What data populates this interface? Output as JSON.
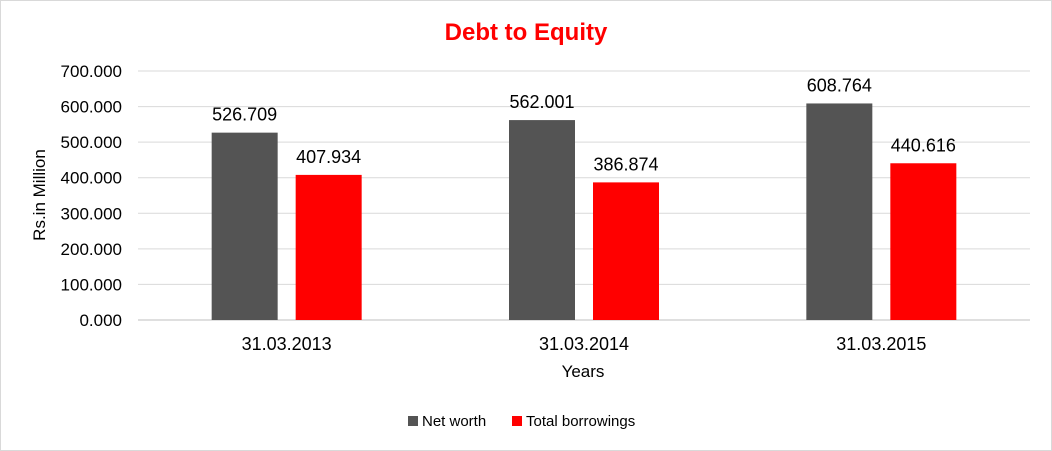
{
  "chart_data": {
    "type": "bar",
    "title": "Debt to Equity",
    "xlabel": "Years",
    "ylabel": "Rs.in Million",
    "categories": [
      "31.03.2013",
      "31.03.2014",
      "31.03.2015"
    ],
    "series": [
      {
        "name": "Net worth",
        "values": [
          526.709,
          562.001,
          608.764
        ],
        "color": "#545454",
        "labels": [
          "526.709",
          "562.001",
          "608.764"
        ]
      },
      {
        "name": "Total borrowings",
        "values": [
          407.934,
          386.874,
          440.616
        ],
        "color": "#ff0000",
        "labels": [
          "407.934",
          "386.874",
          "440.616"
        ]
      }
    ],
    "ylim": [
      0,
      700
    ],
    "yticks": [
      0,
      100,
      200,
      300,
      400,
      500,
      600,
      700
    ],
    "ytick_labels": [
      "0.000",
      "100.000",
      "200.000",
      "300.000",
      "400.000",
      "500.000",
      "600.000",
      "700.000"
    ],
    "grid": true,
    "legend_position": "bottom",
    "title_color": "#ff0000"
  }
}
